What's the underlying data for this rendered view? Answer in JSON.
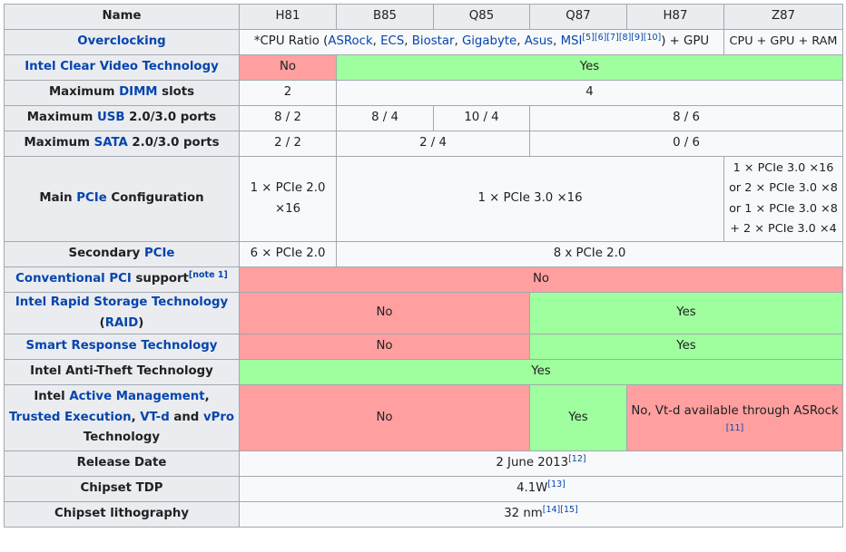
{
  "headers": {
    "name": "Name",
    "chipsets": [
      "H81",
      "B85",
      "Q85",
      "Q87",
      "H87",
      "Z87"
    ]
  },
  "overclocking": {
    "label": "Overclocking",
    "prefix": "*CPU Ratio (",
    "vendors": [
      "ASRock",
      "ECS",
      "Biostar",
      "Gigabyte",
      "Asus",
      "MSI"
    ],
    "sep": ", ",
    "refs": [
      "[5]",
      "[6]",
      "[7]",
      "[8]",
      "[9]",
      "[10]"
    ],
    "suffix": ") + GPU",
    "z87": "CPU + GPU + RAM"
  },
  "clear_video": {
    "label": "Intel Clear Video Technology",
    "h81": "No",
    "rest": "Yes"
  },
  "dimm": {
    "pre": "Maximum ",
    "link": "DIMM",
    "post": " slots",
    "h81": "2",
    "rest": "4"
  },
  "usb": {
    "pre": "Maximum ",
    "link": "USB",
    "post": " 2.0/3.0 ports",
    "h81": "8 / 2",
    "b85": "8 / 4",
    "q85": "10 / 4",
    "rest": "8 / 6"
  },
  "sata": {
    "pre": "Maximum ",
    "link": "SATA",
    "post": " 2.0/3.0 ports",
    "h81": "2 / 2",
    "b85_q85": "2 / 4",
    "rest": "0 / 6"
  },
  "main_pcie": {
    "pre": "Main ",
    "link": "PCIe",
    "post": " Configuration",
    "h81": [
      "1 × PCIe 2.0",
      "×16"
    ],
    "mid": "1 × PCIe 3.0 ×16",
    "z87": [
      "1 × PCIe 3.0 ×16",
      "or 2 × PCIe 3.0 ×8",
      "or 1 × PCIe 3.0 ×8",
      "+ 2 × PCIe 3.0 ×4"
    ]
  },
  "secondary_pcie": {
    "pre": "Secondary ",
    "link": "PCIe",
    "h81": "6 × PCIe 2.0",
    "rest": "8 x PCIe 2.0"
  },
  "conventional_pci": {
    "link": "Conventional PCI",
    "post": " support",
    "note": "[note 1]",
    "all": "No"
  },
  "rst": {
    "link": "Intel Rapid Storage Technology",
    "open": "(",
    "raid": "RAID",
    "close": ")",
    "left": "No",
    "right": "Yes"
  },
  "srt": {
    "link": "Smart Response Technology",
    "left": "No",
    "right": "Yes"
  },
  "anti_theft": {
    "label": "Intel Anti-Theft Technology",
    "all": "Yes"
  },
  "management": {
    "pre": "Intel ",
    "link1": "Active Management",
    "sep1": ", ",
    "link2": "Trusted Execution",
    "sep2": ", ",
    "link3": "VT-d",
    "and": " and ",
    "link4": "vPro",
    "post": "Technology",
    "left": "No",
    "q87": "Yes",
    "right": "No, Vt-d available through ASRock",
    "right_ref": "[11]"
  },
  "release": {
    "label": "Release Date",
    "value": "2 June 2013",
    "ref": "[12]"
  },
  "tdp": {
    "label": "Chipset TDP",
    "value": "4.1W",
    "ref": "[13]"
  },
  "litho": {
    "label": "Chipset lithography",
    "value": "32 nm",
    "refs": [
      "[14]",
      "[15]"
    ]
  },
  "colors": {
    "no": "#ff9f9f",
    "yes": "#9fff9f",
    "header": "#eaecf0",
    "cell": "#f8f9fa",
    "link": "#0645ad",
    "border": "#a2a9b1"
  }
}
